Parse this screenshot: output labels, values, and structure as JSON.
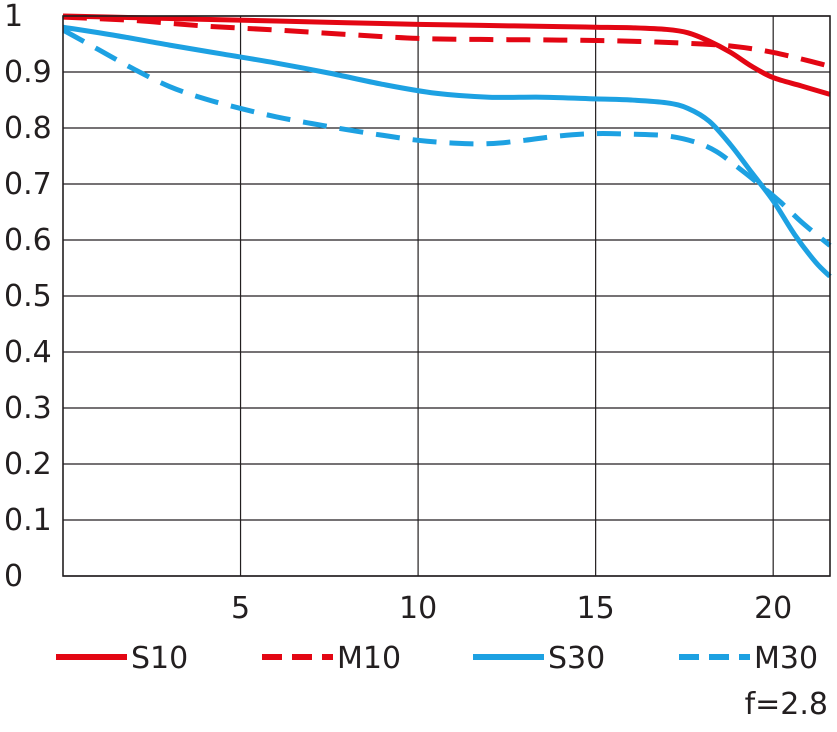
{
  "chart_data": {
    "type": "line",
    "xlim": [
      0,
      21.6
    ],
    "ylim": [
      0,
      1
    ],
    "x_ticks": [
      5,
      10,
      15,
      20
    ],
    "x_tick_labels": [
      "5",
      "10",
      "15",
      "20"
    ],
    "y_ticks": [
      0,
      0.1,
      0.2,
      0.3,
      0.4,
      0.5,
      0.6,
      0.7,
      0.8,
      0.9,
      1
    ],
    "y_tick_labels": [
      "0",
      "0.1",
      "0.2",
      "0.3",
      "0.4",
      "0.5",
      "0.6",
      "0.7",
      "0.8",
      "0.9",
      "1"
    ],
    "grid": true,
    "legend_position": "bottom",
    "note": "f=2.8",
    "series": [
      {
        "name": "S10",
        "color": "#e30613",
        "dash": "solid",
        "points": [
          [
            0,
            1.0
          ],
          [
            2,
            0.997
          ],
          [
            4,
            0.994
          ],
          [
            6,
            0.991
          ],
          [
            8,
            0.988
          ],
          [
            10,
            0.985
          ],
          [
            12,
            0.983
          ],
          [
            14,
            0.981
          ],
          [
            15,
            0.98
          ],
          [
            16,
            0.979
          ],
          [
            17,
            0.976
          ],
          [
            17.6,
            0.97
          ],
          [
            18.2,
            0.955
          ],
          [
            18.8,
            0.935
          ],
          [
            19.4,
            0.91
          ],
          [
            20,
            0.89
          ],
          [
            20.8,
            0.875
          ],
          [
            21.6,
            0.86
          ]
        ]
      },
      {
        "name": "M10",
        "color": "#e30613",
        "dash": "dashed",
        "points": [
          [
            0,
            0.998
          ],
          [
            2,
            0.992
          ],
          [
            4,
            0.982
          ],
          [
            6,
            0.975
          ],
          [
            8,
            0.967
          ],
          [
            10,
            0.96
          ],
          [
            12,
            0.958
          ],
          [
            14,
            0.957
          ],
          [
            16,
            0.955
          ],
          [
            18,
            0.95
          ],
          [
            19,
            0.945
          ],
          [
            20,
            0.935
          ],
          [
            21,
            0.92
          ],
          [
            21.6,
            0.91
          ]
        ]
      },
      {
        "name": "S30",
        "color": "#1da1e2",
        "dash": "solid",
        "points": [
          [
            0,
            0.98
          ],
          [
            1.5,
            0.965
          ],
          [
            3,
            0.948
          ],
          [
            4.5,
            0.932
          ],
          [
            6,
            0.916
          ],
          [
            7.5,
            0.898
          ],
          [
            9,
            0.878
          ],
          [
            10.5,
            0.862
          ],
          [
            12,
            0.855
          ],
          [
            13.5,
            0.855
          ],
          [
            15,
            0.852
          ],
          [
            16,
            0.85
          ],
          [
            17,
            0.845
          ],
          [
            17.6,
            0.835
          ],
          [
            18.2,
            0.812
          ],
          [
            18.8,
            0.77
          ],
          [
            19.4,
            0.72
          ],
          [
            20,
            0.67
          ],
          [
            20.6,
            0.61
          ],
          [
            21.2,
            0.56
          ],
          [
            21.6,
            0.535
          ]
        ]
      },
      {
        "name": "M30",
        "color": "#1da1e2",
        "dash": "dashed",
        "points": [
          [
            0,
            0.975
          ],
          [
            1,
            0.94
          ],
          [
            2,
            0.905
          ],
          [
            3,
            0.874
          ],
          [
            4,
            0.852
          ],
          [
            5,
            0.835
          ],
          [
            6,
            0.82
          ],
          [
            7,
            0.808
          ],
          [
            8,
            0.797
          ],
          [
            9,
            0.787
          ],
          [
            10,
            0.778
          ],
          [
            11,
            0.773
          ],
          [
            12,
            0.772
          ],
          [
            13,
            0.778
          ],
          [
            14,
            0.786
          ],
          [
            15,
            0.79
          ],
          [
            16,
            0.789
          ],
          [
            17,
            0.786
          ],
          [
            17.8,
            0.775
          ],
          [
            18.4,
            0.758
          ],
          [
            19,
            0.73
          ],
          [
            19.6,
            0.7
          ],
          [
            20.2,
            0.668
          ],
          [
            20.8,
            0.632
          ],
          [
            21.6,
            0.59
          ]
        ]
      }
    ]
  }
}
